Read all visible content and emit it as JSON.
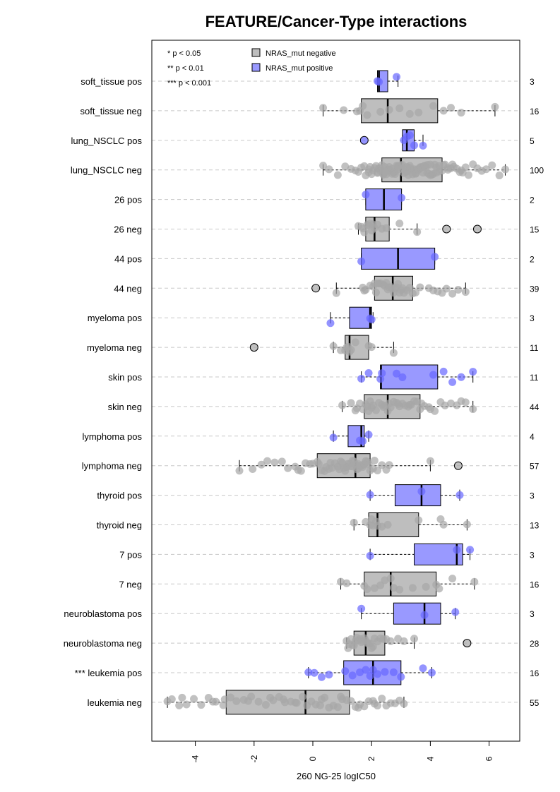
{
  "chart_data": {
    "type": "boxplot",
    "title": "FEATURE/Cancer-Type interactions",
    "xlabel": "260 NG-25 logIC50",
    "xlim": [
      -5.5,
      7
    ],
    "xticks": [
      -4,
      -2,
      0,
      2,
      4,
      6
    ],
    "xtick_labels": [
      "-4",
      "-2",
      "0",
      "2",
      "4",
      "6"
    ],
    "grid": "horizontal dashed",
    "colors": {
      "negative": "#bebebe",
      "positive": "#9999ff",
      "neg_point": "#a6a6a6",
      "pos_point": "#6666ff"
    },
    "legend": {
      "position": "top-left",
      "significance": [
        "* p < 0.05",
        "** p < 0.01",
        "*** p < 0.001"
      ],
      "series": [
        {
          "name": "NRAS_mut negative",
          "color": "#bebebe"
        },
        {
          "name": "NRAS_mut positive",
          "color": "#9999ff"
        }
      ]
    },
    "groups": [
      {
        "label": "soft_tissue pos",
        "n": "3",
        "positive": true,
        "whisker_low": 2.2,
        "q1": 2.2,
        "median": 2.25,
        "q3": 2.55,
        "whisker_high": 2.9,
        "points": [
          2.2,
          2.25,
          2.85
        ]
      },
      {
        "label": "soft_tissue neg",
        "n": "16",
        "positive": false,
        "whisker_low": 0.35,
        "q1": 1.65,
        "median": 2.55,
        "q3": 4.25,
        "whisker_high": 6.2,
        "points": [
          0.35,
          1.05,
          1.6,
          1.7,
          1.85,
          2.3,
          2.6,
          2.95,
          3.3,
          3.6,
          4.1,
          4.45,
          4.7,
          5.05,
          6.2,
          1.5
        ]
      },
      {
        "label": "lung_NSCLC pos",
        "n": "5",
        "positive": true,
        "whisker_low": 3.05,
        "q1": 3.05,
        "median": 3.2,
        "q3": 3.45,
        "whisker_high": 3.75,
        "points": [
          3.1,
          3.2,
          3.3,
          3.45,
          3.75
        ],
        "outliers": [
          1.75
        ]
      },
      {
        "label": "lung_NSCLC neg",
        "n": "100",
        "positive": false,
        "whisker_low": 0.35,
        "q1": 2.35,
        "median": 3.0,
        "q3": 4.4,
        "whisker_high": 6.55,
        "points": [
          0.35,
          0.55,
          0.85,
          1.1,
          1.3,
          1.45,
          1.55,
          1.65,
          1.75,
          1.8,
          1.9,
          1.95,
          2.05,
          2.1,
          2.15,
          2.2,
          2.25,
          2.3,
          2.35,
          2.4,
          2.45,
          2.5,
          2.55,
          2.6,
          2.65,
          2.7,
          2.75,
          2.8,
          2.85,
          2.9,
          2.95,
          3.0,
          3.05,
          3.1,
          3.15,
          3.2,
          3.25,
          3.3,
          3.35,
          3.4,
          3.45,
          3.5,
          3.55,
          3.6,
          3.65,
          3.7,
          3.75,
          3.8,
          3.85,
          3.9,
          3.95,
          4.0,
          4.05,
          4.1,
          4.2,
          4.3,
          4.4,
          4.5,
          4.6,
          4.7,
          4.8,
          4.9,
          5.0,
          5.1,
          5.2,
          5.3,
          5.45,
          5.6,
          5.75,
          5.9,
          6.1,
          6.35,
          6.55,
          2.0,
          2.3,
          2.6,
          2.9,
          3.1,
          3.4,
          3.7,
          4.0,
          4.3,
          1.9,
          2.2,
          2.5,
          2.8,
          3.2,
          3.5,
          3.8,
          4.15,
          4.45,
          4.75,
          5.05,
          2.4,
          2.7,
          3.3,
          3.6,
          3.9,
          4.2,
          4.6
        ]
      },
      {
        "label": "26 pos",
        "n": "2",
        "positive": true,
        "whisker_low": 1.8,
        "q1": 1.8,
        "median": 2.42,
        "q3": 3.02,
        "whisker_high": 3.02,
        "points": [
          1.8,
          3.02
        ]
      },
      {
        "label": "26 neg",
        "n": "15",
        "positive": false,
        "whisker_low": 1.55,
        "q1": 1.8,
        "median": 2.1,
        "q3": 2.6,
        "whisker_high": 3.55,
        "points": [
          1.55,
          1.65,
          1.75,
          1.85,
          1.9,
          1.95,
          2.0,
          2.05,
          2.1,
          2.2,
          2.35,
          2.5,
          2.95,
          3.55,
          1.7
        ],
        "outliers": [
          4.55,
          5.6
        ]
      },
      {
        "label": "44 pos",
        "n": "2",
        "positive": true,
        "whisker_low": 1.65,
        "q1": 1.65,
        "median": 2.9,
        "q3": 4.15,
        "whisker_high": 4.15,
        "points": [
          1.65,
          4.15
        ]
      },
      {
        "label": "44 neg",
        "n": "39",
        "positive": false,
        "whisker_low": 0.8,
        "q1": 2.1,
        "median": 2.72,
        "q3": 3.4,
        "whisker_high": 5.2,
        "points": [
          0.8,
          1.75,
          1.8,
          1.95,
          2.05,
          2.1,
          2.15,
          2.25,
          2.3,
          2.4,
          2.45,
          2.5,
          2.55,
          2.6,
          2.65,
          2.7,
          2.75,
          2.8,
          2.85,
          2.9,
          2.95,
          3.0,
          3.05,
          3.1,
          3.2,
          3.3,
          3.4,
          3.5,
          3.65,
          3.95,
          4.1,
          4.25,
          4.4,
          4.55,
          4.75,
          4.95,
          5.2,
          1.7,
          2.2
        ],
        "outliers": [
          0.1
        ]
      },
      {
        "label": "myeloma pos",
        "n": "3",
        "positive": true,
        "whisker_low": 0.6,
        "q1": 1.25,
        "median": 1.95,
        "q3": 2.0,
        "whisker_high": 2.05,
        "points": [
          0.6,
          1.95,
          2.0
        ]
      },
      {
        "label": "myeloma neg",
        "n": "11",
        "positive": false,
        "whisker_low": 0.7,
        "q1": 1.1,
        "median": 1.25,
        "q3": 1.9,
        "whisker_high": 2.75,
        "points": [
          0.7,
          0.95,
          1.1,
          1.15,
          1.2,
          1.25,
          1.3,
          1.45,
          1.9,
          2.0,
          2.75
        ],
        "outliers": [
          -2.0
        ]
      },
      {
        "label": "skin pos",
        "n": "11",
        "positive": true,
        "whisker_low": 1.65,
        "q1": 2.3,
        "median": 2.32,
        "q3": 4.25,
        "whisker_high": 5.45,
        "points": [
          1.65,
          1.9,
          2.3,
          2.35,
          2.85,
          3.05,
          4.1,
          4.45,
          4.75,
          5.05,
          5.45
        ]
      },
      {
        "label": "skin neg",
        "n": "44",
        "positive": false,
        "whisker_low": 1.0,
        "q1": 1.75,
        "median": 2.55,
        "q3": 3.65,
        "whisker_high": 5.45,
        "points": [
          1.0,
          1.3,
          1.5,
          1.6,
          1.7,
          1.8,
          1.9,
          2.0,
          2.05,
          2.15,
          2.25,
          2.35,
          2.45,
          2.55,
          2.65,
          2.75,
          2.85,
          2.95,
          3.05,
          3.15,
          3.25,
          3.35,
          3.45,
          3.55,
          3.65,
          3.8,
          3.95,
          4.15,
          4.35,
          4.5,
          4.7,
          4.9,
          5.05,
          5.2,
          5.45,
          1.45,
          1.95,
          2.4,
          2.9,
          3.3,
          3.7,
          4.0,
          1.85,
          2.6
        ]
      },
      {
        "label": "lymphoma pos",
        "n": "4",
        "positive": true,
        "whisker_low": 0.7,
        "q1": 1.2,
        "median": 1.65,
        "q3": 1.75,
        "whisker_high": 1.9,
        "points": [
          0.7,
          1.6,
          1.7,
          1.9
        ]
      },
      {
        "label": "lymphoma neg",
        "n": "57",
        "positive": false,
        "whisker_low": -2.5,
        "q1": 0.15,
        "median": 1.45,
        "q3": 1.95,
        "whisker_high": 4.0,
        "points": [
          -2.5,
          -2.05,
          -1.75,
          -1.55,
          -1.3,
          -1.05,
          -0.85,
          -0.6,
          -0.4,
          -0.25,
          -0.1,
          0.0,
          0.15,
          0.3,
          0.45,
          0.55,
          0.65,
          0.75,
          0.85,
          0.95,
          1.05,
          1.1,
          1.15,
          1.2,
          1.25,
          1.3,
          1.35,
          1.4,
          1.45,
          1.5,
          1.55,
          1.6,
          1.65,
          1.7,
          1.75,
          1.8,
          1.85,
          1.9,
          1.95,
          2.05,
          2.2,
          2.35,
          2.5,
          2.6,
          4.0,
          -0.5,
          0.2,
          0.6,
          1.0,
          1.35,
          1.55,
          1.75,
          0.4,
          0.9,
          1.15,
          1.6,
          2.1
        ],
        "outliers": [
          4.95
        ]
      },
      {
        "label": "thyroid pos",
        "n": "3",
        "positive": true,
        "whisker_low": 1.95,
        "q1": 2.8,
        "median": 3.7,
        "q3": 4.35,
        "whisker_high": 5.0,
        "points": [
          1.95,
          3.7,
          5.0
        ]
      },
      {
        "label": "thyroid neg",
        "n": "13",
        "positive": false,
        "whisker_low": 1.4,
        "q1": 1.9,
        "median": 2.2,
        "q3": 3.6,
        "whisker_high": 5.25,
        "points": [
          1.4,
          1.8,
          1.95,
          2.05,
          2.15,
          2.2,
          2.35,
          2.55,
          3.6,
          4.35,
          4.45,
          5.25,
          2.0
        ]
      },
      {
        "label": "7 pos",
        "n": "3",
        "positive": true,
        "whisker_low": 1.95,
        "q1": 3.45,
        "median": 4.9,
        "q3": 5.1,
        "whisker_high": 5.35,
        "points": [
          1.95,
          4.9,
          5.35
        ]
      },
      {
        "label": "7 neg",
        "n": "16",
        "positive": false,
        "whisker_low": 0.95,
        "q1": 1.75,
        "median": 2.65,
        "q3": 4.2,
        "whisker_high": 5.5,
        "points": [
          0.95,
          1.15,
          1.75,
          1.85,
          2.1,
          2.45,
          2.65,
          2.75,
          2.95,
          3.4,
          3.85,
          4.2,
          4.3,
          4.75,
          5.5,
          2.3
        ]
      },
      {
        "label": "neuroblastoma pos",
        "n": "3",
        "positive": true,
        "whisker_low": 1.65,
        "q1": 2.75,
        "median": 3.8,
        "q3": 4.35,
        "whisker_high": 4.85,
        "points": [
          1.65,
          3.8,
          4.85
        ]
      },
      {
        "label": "neuroblastoma neg",
        "n": "28",
        "positive": false,
        "whisker_low": 1.15,
        "q1": 1.4,
        "median": 1.8,
        "q3": 2.45,
        "whisker_high": 3.45,
        "points": [
          1.15,
          1.2,
          1.25,
          1.3,
          1.35,
          1.4,
          1.5,
          1.55,
          1.6,
          1.7,
          1.75,
          1.8,
          1.85,
          1.9,
          1.95,
          2.0,
          2.1,
          2.2,
          2.3,
          2.4,
          2.5,
          2.65,
          2.9,
          3.1,
          3.45,
          1.65,
          1.45,
          2.05
        ],
        "outliers": [
          5.25
        ]
      },
      {
        "label": "*** leukemia pos",
        "n": "16",
        "positive": true,
        "whisker_low": -0.15,
        "q1": 1.05,
        "median": 2.05,
        "q3": 3.0,
        "whisker_high": 4.05,
        "points": [
          -0.15,
          0.05,
          0.3,
          0.55,
          1.1,
          1.35,
          1.6,
          1.8,
          1.95,
          2.05,
          2.2,
          2.45,
          2.75,
          3.0,
          3.75,
          4.05
        ]
      },
      {
        "label": "leukemia neg",
        "n": "55",
        "positive": false,
        "whisker_low": -4.95,
        "q1": -2.95,
        "median": -0.25,
        "q3": 1.25,
        "whisker_high": 3.1,
        "points": [
          -4.95,
          -4.8,
          -4.55,
          -4.3,
          -4.05,
          -3.8,
          -3.55,
          -3.3,
          -3.05,
          -2.8,
          -2.6,
          -2.35,
          -2.1,
          -1.85,
          -1.6,
          -1.35,
          -1.15,
          -0.95,
          -0.75,
          -0.55,
          -0.35,
          -0.2,
          -0.05,
          0.1,
          0.25,
          0.4,
          0.55,
          0.7,
          0.85,
          1.0,
          1.15,
          1.3,
          1.45,
          1.6,
          1.75,
          1.9,
          2.05,
          2.2,
          2.35,
          2.5,
          2.65,
          2.8,
          2.95,
          3.1,
          -4.45,
          -3.4,
          -2.2,
          -1.45,
          -0.6,
          0.3,
          0.95,
          1.55,
          2.1,
          -3.0,
          -1.0
        ]
      }
    ]
  }
}
